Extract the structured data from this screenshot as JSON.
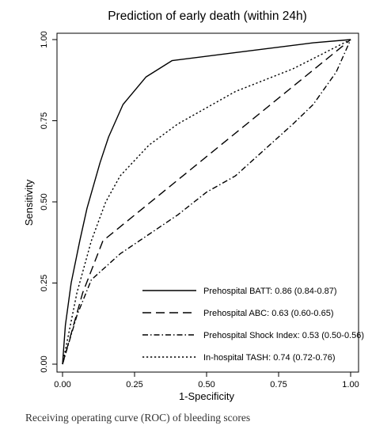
{
  "figure": {
    "caption": "Receiving operating curve (ROC) of bleeding scores"
  },
  "colors": {
    "ink": "#000000",
    "background": "#ffffff",
    "caption": "#333333"
  },
  "chart_data": {
    "type": "line",
    "title": "Prediction of early death (within 24h)",
    "xlabel": "1-Specificity",
    "ylabel": "Sensitivity",
    "xlim": [
      0,
      1
    ],
    "ylim": [
      0,
      1
    ],
    "x_ticks": [
      "0.00",
      "0.25",
      "0.50",
      "0.75",
      "1.00"
    ],
    "y_ticks": [
      "0.00",
      "0.25",
      "0.50",
      "0.75",
      "1.00"
    ],
    "grid": false,
    "legend_position": "bottom-right",
    "series": [
      {
        "name": "Prehospital BATT: 0.86 (0.84-0.87)",
        "line_style": "solid",
        "points": [
          [
            0,
            0
          ],
          [
            0.01,
            0.12
          ],
          [
            0.03,
            0.25
          ],
          [
            0.06,
            0.38
          ],
          [
            0.085,
            0.48
          ],
          [
            0.13,
            0.62
          ],
          [
            0.16,
            0.7
          ],
          [
            0.21,
            0.8
          ],
          [
            0.29,
            0.885
          ],
          [
            0.38,
            0.935
          ],
          [
            0.6,
            0.96
          ],
          [
            0.87,
            0.99
          ],
          [
            1,
            1
          ]
        ]
      },
      {
        "name": "Prehospital ABC: 0.63 (0.60-0.65)",
        "line_style": "dashed",
        "points": [
          [
            0,
            0
          ],
          [
            0.07,
            0.22
          ],
          [
            0.14,
            0.38
          ],
          [
            1,
            1
          ]
        ]
      },
      {
        "name": "Prehospital Shock Index: 0.53 (0.50-0.56)",
        "line_style": "dotdash",
        "points": [
          [
            0,
            0
          ],
          [
            0.05,
            0.15
          ],
          [
            0.1,
            0.26
          ],
          [
            0.2,
            0.34
          ],
          [
            0.3,
            0.4
          ],
          [
            0.4,
            0.46
          ],
          [
            0.5,
            0.53
          ],
          [
            0.6,
            0.58
          ],
          [
            0.7,
            0.66
          ],
          [
            0.8,
            0.74
          ],
          [
            0.87,
            0.8
          ],
          [
            0.95,
            0.9
          ],
          [
            1,
            1
          ]
        ]
      },
      {
        "name": "In-hospital TASH: 0.74 (0.72-0.76)",
        "line_style": "dotted",
        "points": [
          [
            0,
            0
          ],
          [
            0.05,
            0.22
          ],
          [
            0.1,
            0.38
          ],
          [
            0.15,
            0.5
          ],
          [
            0.2,
            0.58
          ],
          [
            0.3,
            0.675
          ],
          [
            0.4,
            0.74
          ],
          [
            0.5,
            0.79
          ],
          [
            0.6,
            0.84
          ],
          [
            0.8,
            0.91
          ],
          [
            1,
            1
          ]
        ]
      }
    ]
  }
}
